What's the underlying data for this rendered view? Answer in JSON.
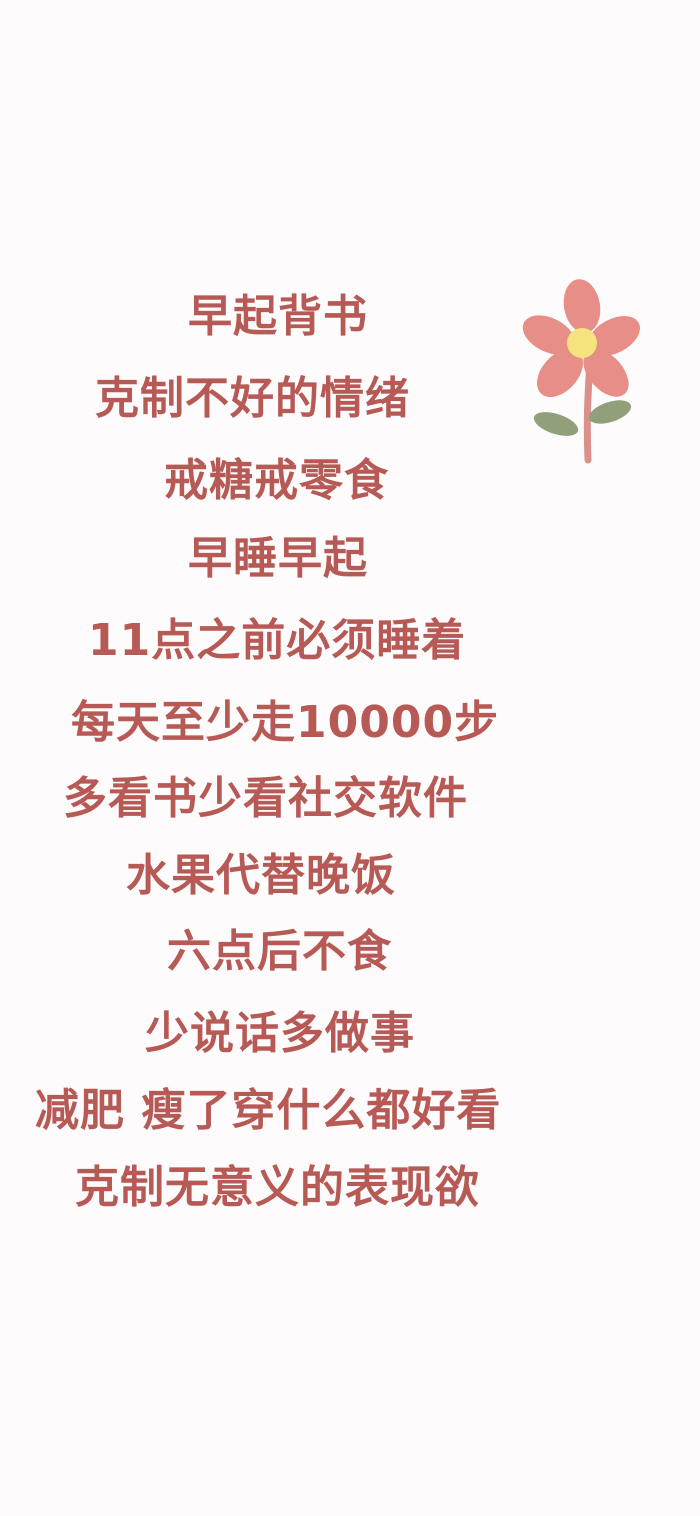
{
  "lines": [
    "早起背书",
    "克制不好的情绪",
    "戒糖戒零食",
    "早睡早起",
    "11点之前必须睡着",
    "每天至少走10000步",
    "多看书少看社交软件",
    "水果代替晚饭",
    "六点后不食",
    "少说话多做事",
    "减肥 瘦了穿什么都好看",
    "克制无意义的表现欲"
  ],
  "colors": {
    "text": "#b75955",
    "petal": "#e88b86",
    "center": "#f5e47a",
    "stem": "#d98d88",
    "leaf": "#8f9d77",
    "background": "#fdfbfb"
  },
  "icons": {
    "decoration": "flower-icon"
  }
}
